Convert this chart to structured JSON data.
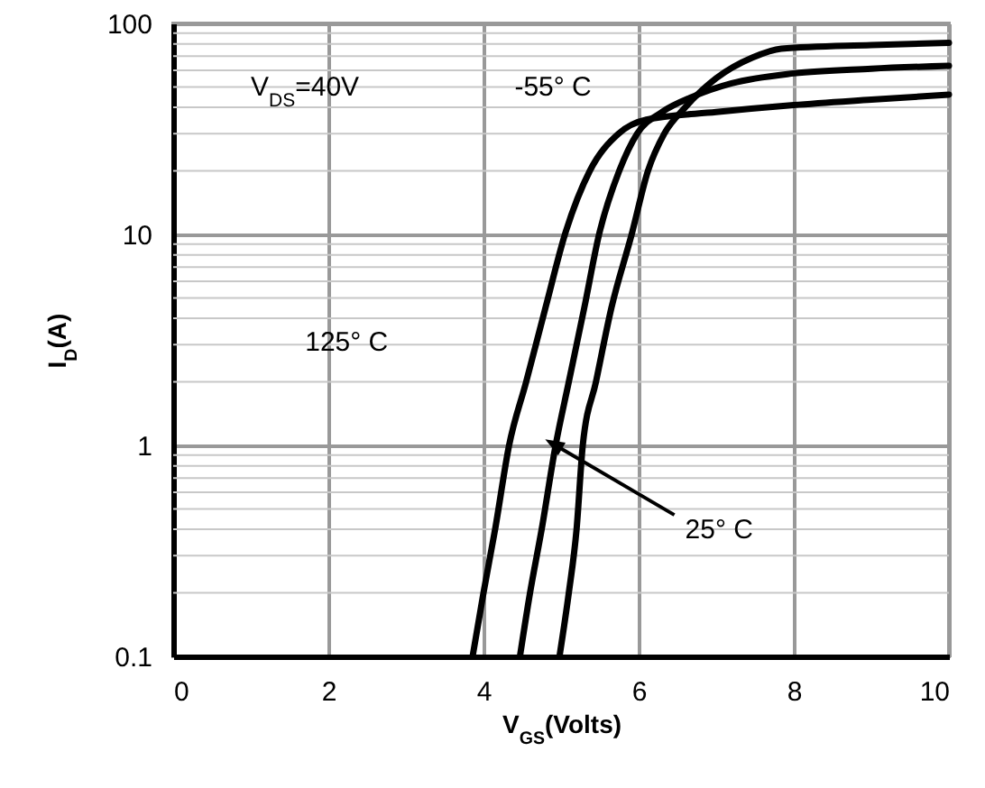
{
  "chart_data": {
    "type": "line",
    "xlabel": "V$_{GS}$(Volts)",
    "ylabel": "I$_{D}$(A)",
    "xlim": [
      0,
      10
    ],
    "xticks": [
      0,
      2,
      4,
      6,
      8,
      10
    ],
    "ylim": [
      0.1,
      100
    ],
    "yticks": [
      0.1,
      1,
      10,
      100
    ],
    "log": true,
    "grid": true,
    "line_style": "solid",
    "marker": "none",
    "series": [
      {
        "color": "#000000",
        "x": [
          3.86,
          4.0,
          4.15,
          4.33,
          4.55,
          4.8,
          5.05,
          5.37,
          5.74,
          6.1,
          7,
          8,
          9,
          10
        ],
        "values": [
          0.1,
          0.2,
          0.4,
          1,
          2,
          4.5,
          10,
          20,
          30,
          35,
          38,
          41,
          43.5,
          46
        ]
      },
      {
        "color": "#000000",
        "x": [
          4.47,
          4.6,
          4.75,
          4.93,
          5.1,
          5.3,
          5.49,
          5.75,
          5.98,
          6.3,
          6.7,
          7.2,
          8,
          9,
          10
        ],
        "values": [
          0.1,
          0.2,
          0.4,
          1,
          2,
          4.5,
          10,
          20,
          30,
          38,
          45,
          52,
          58,
          61,
          63
        ]
      },
      {
        "color": "#000000",
        "x": [
          4.98,
          5.1,
          5.2,
          5.28,
          5.45,
          5.65,
          5.91,
          6.12,
          6.33,
          6.6,
          7.0,
          7.47,
          7.84,
          9,
          10
        ],
        "values": [
          0.1,
          0.2,
          0.4,
          1,
          2,
          4.5,
          10,
          20,
          30,
          40,
          55,
          69,
          76,
          79,
          81
        ]
      }
    ],
    "annotations": [
      "V$_{DS}$=40V",
      "-55° C",
      "125° C",
      {
        "text": "25° C",
        "x": 4.93,
        "y": 1
      }
    ]
  }
}
